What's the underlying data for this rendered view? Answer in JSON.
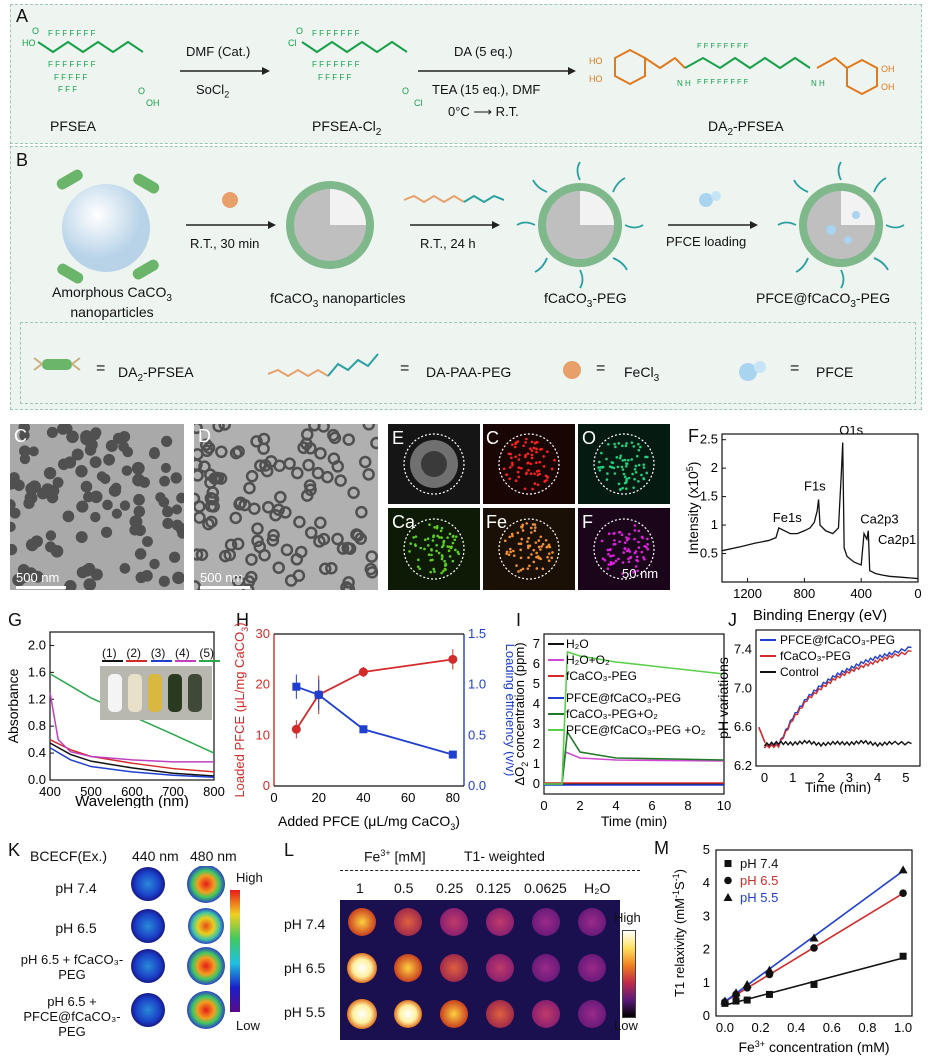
{
  "panels": {
    "A": "A",
    "B": "B",
    "C": "C",
    "D": "D",
    "E": "E",
    "F": "F",
    "G": "G",
    "H": "H",
    "I": "I",
    "J": "J",
    "K": "K",
    "L": "L",
    "M": "M"
  },
  "schemeA": {
    "compound1": "PFSEA",
    "compound2": "PFSEA-Cl",
    "compound2_sub": "2",
    "compound3": "DA",
    "compound3_sub": "2",
    "compound3_suffix": "-PFSEA",
    "step1_top": "DMF (Cat.)",
    "step1_bottom": "SoCl",
    "step1_bottom_sub": "2",
    "step2_top": "DA (5 eq.)",
    "step2_mid": "TEA (15 eq.), DMF",
    "step2_bottom": "0°C ⟶ R.T."
  },
  "schemeB": {
    "np1": "Amorphous CaCO",
    "np1_sub": "3",
    "np1_line2": "nanoparticles",
    "step1": "R.T., 30 min",
    "np2": "fCaCO",
    "np2_sub": "3",
    "np2_suffix": " nanoparticles",
    "step2": "R.T., 24 h",
    "np3": "fCaCO",
    "np3_sub": "3",
    "np3_suffix": "-PEG",
    "step3": "PFCE loading",
    "np4": "PFCE@fCaCO",
    "np4_sub": "3",
    "np4_suffix": "-PEG",
    "legend_eq": "=",
    "legend1": "DA",
    "legend1_sub": "2",
    "legend1_suffix": "-PFSEA",
    "legend2": "DA-PAA-PEG",
    "legend3": "FeCl",
    "legend3_sub": "3",
    "legend4": "PFCE"
  },
  "micrographs": {
    "C_scale": "500 nm",
    "D_scale": "500 nm",
    "E_labels": [
      "C",
      "O",
      "Ca",
      "Fe",
      "F"
    ],
    "E_scale": "50 nm"
  },
  "colors": {
    "green": "#18a04a",
    "orange": "#e07a1e",
    "red": "#d42a2a",
    "blue": "#1f3fd1",
    "gray_text": "#111111"
  },
  "chart_data": [
    {
      "id": "F",
      "type": "line",
      "xlabel": "Binding Energy (eV)",
      "ylabel": "Intensity (x10",
      "ylabel_sup": "5",
      "ylabel_suffix": ")",
      "xlim": [
        1380,
        0
      ],
      "ylim": [
        0,
        2.6
      ],
      "xticks": [
        1200,
        800,
        400,
        0
      ],
      "yticks": [
        0.5,
        1,
        1.5,
        2,
        2.5
      ],
      "annotations": [
        "O1s",
        "F1s",
        "Fe1s",
        "Ca2p3",
        "Ca2p1"
      ],
      "series": [
        {
          "x": [
            1380,
            1250,
            1150,
            1050,
            1000,
            980,
            900,
            850,
            800,
            760,
            730,
            710,
            700,
            690,
            650,
            600,
            560,
            540,
            530,
            520,
            500,
            450,
            400,
            380,
            360,
            350,
            340,
            300,
            250,
            200,
            100,
            50,
            0
          ],
          "y": [
            0.55,
            0.62,
            0.68,
            0.73,
            0.78,
            0.95,
            0.85,
            0.85,
            0.9,
            0.95,
            1.05,
            1.25,
            1.45,
            1.0,
            0.9,
            0.85,
            0.95,
            1.9,
            2.45,
            0.6,
            0.45,
            0.35,
            0.3,
            0.85,
            0.75,
            0.9,
            0.2,
            0.15,
            0.12,
            0.1,
            0.08,
            0.07,
            0.06
          ]
        }
      ]
    },
    {
      "id": "G",
      "type": "line",
      "xlabel": "Wavelength (nm)",
      "ylabel": "Absorbance",
      "xlim": [
        400,
        800
      ],
      "ylim": [
        0,
        2.2
      ],
      "xticks": [
        400,
        500,
        600,
        700,
        800
      ],
      "yticks": [
        0.0,
        0.4,
        0.8,
        1.2,
        1.6,
        2.0
      ],
      "yticklabels": [
        "0.0",
        "0.4",
        "0.8",
        "1.2",
        "1.6",
        "2.0"
      ],
      "legend": [
        "(1)",
        "(2)",
        "(3)",
        "(4)",
        "(5)"
      ],
      "series": [
        {
          "color": "#111111",
          "x": [
            400,
            450,
            500,
            600,
            700,
            800
          ],
          "y": [
            0.55,
            0.38,
            0.28,
            0.18,
            0.1,
            0.06
          ]
        },
        {
          "color": "#d42a2a",
          "x": [
            400,
            450,
            500,
            600,
            700,
            800
          ],
          "y": [
            0.6,
            0.45,
            0.35,
            0.25,
            0.17,
            0.12
          ]
        },
        {
          "color": "#1f3fd1",
          "x": [
            400,
            450,
            500,
            600,
            700,
            800
          ],
          "y": [
            0.48,
            0.3,
            0.2,
            0.12,
            0.07,
            0.04
          ]
        },
        {
          "color": "#c040c0",
          "x": [
            400,
            420,
            450,
            500,
            600,
            700,
            800
          ],
          "y": [
            1.3,
            0.6,
            0.42,
            0.35,
            0.3,
            0.27,
            0.27
          ]
        },
        {
          "color": "#2aa84a",
          "x": [
            400,
            450,
            500,
            600,
            700,
            800
          ],
          "y": [
            1.58,
            1.4,
            1.22,
            0.95,
            0.68,
            0.4
          ]
        }
      ]
    },
    {
      "id": "H",
      "type": "line",
      "xlabel": "Added PFCE (μL/mg CaCO",
      "xlabel_sub": "3",
      "xlabel_suffix": ")",
      "ylabel_left": "Loaded PFCE (μL/mg CaCO",
      "ylabel_left_sub": "3",
      "ylabel_left_suffix": ")",
      "ylabel_right": "Loading efficiency (v/v)",
      "xlim": [
        0,
        85
      ],
      "ylim_left": [
        0,
        30
      ],
      "ylim_right": [
        0,
        1.5
      ],
      "xticks": [
        0,
        20,
        40,
        60,
        80
      ],
      "yticks_left": [
        0,
        10,
        20,
        30
      ],
      "yticks_right": [
        0.0,
        0.5,
        1.0,
        1.5
      ],
      "yticks_right_labels": [
        "0.0",
        "0.5",
        "1.0",
        "1.5"
      ],
      "series": [
        {
          "name": "loaded",
          "color": "#d42a2a",
          "x": [
            10,
            20,
            40,
            80
          ],
          "y": [
            11.2,
            18,
            22.5,
            25
          ],
          "err": [
            1.8,
            3.8,
            1,
            2
          ]
        },
        {
          "name": "efficiency",
          "color": "#1f3fd1",
          "x": [
            10,
            20,
            40,
            80
          ],
          "y": [
            0.98,
            0.9,
            0.56,
            0.31
          ],
          "err": [
            0.12,
            0.15,
            0.02,
            0.02
          ]
        }
      ]
    },
    {
      "id": "I",
      "type": "line",
      "xlabel": "Time (min)",
      "ylabel": "ΔO",
      "ylabel_sub": "2",
      "ylabel_suffix": " concentration (ppm)",
      "xlim": [
        0,
        10
      ],
      "ylim": [
        -0.5,
        7.5
      ],
      "xticks": [
        0,
        2,
        4,
        6,
        8,
        10
      ],
      "yticks": [
        0,
        1,
        2,
        3,
        4,
        5,
        6,
        7
      ],
      "legend": [
        "H₂O",
        "H₂O+O₂",
        "fCaCO₃-PEG",
        "PFCE@fCaCO₃-PEG",
        "fCaCO₃-PEG+O₂",
        "PFCE@fCaCO₃-PEG +O₂"
      ],
      "series": [
        {
          "color": "#111111",
          "x": [
            0,
            10
          ],
          "y": [
            0,
            0
          ]
        },
        {
          "color": "#d04ad0",
          "x": [
            0,
            1,
            1.2,
            2,
            4,
            10
          ],
          "y": [
            0,
            0,
            1.6,
            1.3,
            1.2,
            1.15
          ]
        },
        {
          "color": "#d42a2a",
          "x": [
            0,
            10
          ],
          "y": [
            0.05,
            0.05
          ]
        },
        {
          "color": "#1f3fd1",
          "x": [
            0,
            10
          ],
          "y": [
            -0.05,
            -0.05
          ]
        },
        {
          "color": "#217a2a",
          "x": [
            0,
            1,
            1.3,
            2,
            4,
            10
          ],
          "y": [
            0,
            0,
            2.6,
            1.6,
            1.3,
            1.2
          ]
        },
        {
          "color": "#5ad04a",
          "x": [
            0,
            1,
            1.3,
            2,
            4,
            6,
            8,
            10
          ],
          "y": [
            0,
            0,
            6.6,
            6.4,
            6.1,
            5.9,
            5.7,
            5.5
          ]
        }
      ]
    },
    {
      "id": "J",
      "type": "line",
      "xlabel": "Time (min)",
      "ylabel": "pH variations",
      "xlim": [
        -0.3,
        5.5
      ],
      "ylim": [
        6.2,
        7.6
      ],
      "xticks": [
        0,
        1,
        2,
        3,
        4,
        5
      ],
      "yticks": [
        6.2,
        6.6,
        7.0,
        7.4
      ],
      "yticklabels": [
        "6.2",
        "6.6",
        "7.0",
        "7.4"
      ],
      "legend": [
        "PFCE@fCaCO₃-PEG",
        "fCaCO₃-PEG",
        "Control"
      ],
      "series": [
        {
          "color": "#1f3fd1",
          "x": [
            0,
            0.5,
            1,
            1.5,
            2,
            2.5,
            3,
            3.5,
            4,
            4.5,
            5.2
          ],
          "y": [
            6.4,
            6.42,
            6.7,
            6.9,
            7.03,
            7.13,
            7.2,
            7.27,
            7.32,
            7.36,
            7.42
          ]
        },
        {
          "color": "#d42a2a",
          "x": [
            0,
            0.5,
            1,
            1.5,
            2,
            2.5,
            3,
            3.5,
            4,
            4.5,
            5.2
          ],
          "y": [
            6.4,
            6.41,
            6.68,
            6.88,
            7.0,
            7.1,
            7.17,
            7.23,
            7.28,
            7.33,
            7.38
          ]
        },
        {
          "color": "#111111",
          "x": [
            0,
            0.5,
            1,
            1.5,
            2,
            2.5,
            3,
            3.5,
            4,
            4.5,
            5.2
          ],
          "y": [
            6.42,
            6.44,
            6.43,
            6.45,
            6.42,
            6.44,
            6.43,
            6.45,
            6.42,
            6.44,
            6.43
          ]
        }
      ]
    },
    {
      "id": "M",
      "type": "scatter",
      "xlabel": "Fe",
      "xlabel_sup": "3+",
      "xlabel_suffix": " concentration (mM)",
      "ylabel": "T1 relaxivity (mM",
      "ylabel_sup": "-1",
      "ylabel_mid": "S",
      "ylabel_sup2": "-1",
      "ylabel_suffix": ")",
      "xlim": [
        -0.05,
        1.05
      ],
      "ylim": [
        0,
        5
      ],
      "xticks": [
        0.0,
        0.2,
        0.4,
        0.6,
        0.8,
        1.0
      ],
      "xticklabels": [
        "0.0",
        "0.2",
        "0.4",
        "0.6",
        "0.8",
        "1.0"
      ],
      "yticks": [
        0,
        1,
        2,
        3,
        4,
        5
      ],
      "legend": [
        "pH 7.4",
        "pH 6.5",
        "pH 5.5"
      ],
      "series": [
        {
          "name": "pH 7.4",
          "color": "#111111",
          "marker": "square",
          "x": [
            0,
            0.0625,
            0.125,
            0.25,
            0.5,
            1
          ],
          "y": [
            0.38,
            0.45,
            0.48,
            0.65,
            0.95,
            1.8
          ]
        },
        {
          "name": "pH 6.5",
          "color": "#d42a2a",
          "marker": "circle",
          "x": [
            0,
            0.0625,
            0.125,
            0.25,
            0.5,
            1
          ],
          "y": [
            0.42,
            0.65,
            0.85,
            1.25,
            2.05,
            3.7
          ]
        },
        {
          "name": "pH 5.5",
          "color": "#1f3fd1",
          "marker": "triangle",
          "x": [
            0,
            0.0625,
            0.125,
            0.25,
            0.5,
            1
          ],
          "y": [
            0.45,
            0.7,
            0.95,
            1.38,
            2.35,
            4.4
          ]
        }
      ]
    }
  ],
  "panelK": {
    "header": "BCECF(Ex.)",
    "col1": "440 nm",
    "col2": "480 nm",
    "rows": [
      "pH 7.4",
      "pH 6.5",
      "pH 6.5 + fCaCO₃-PEG",
      "pH 6.5 + PFCE@fCaCO₃-PEG"
    ],
    "scale_high": "High",
    "scale_low": "Low"
  },
  "panelL": {
    "header_fe": "Fe",
    "header_fe_sup": "3+",
    "header_fe_suffix": " [mM]",
    "header_t1": "T1- weighted",
    "cols": [
      "1",
      "0.5",
      "0.25",
      "0.125",
      "0.0625",
      "H₂O"
    ],
    "rows": [
      "pH 7.4",
      "pH 6.5",
      "pH 5.5"
    ],
    "scale_high": "High",
    "scale_low": "Low"
  }
}
